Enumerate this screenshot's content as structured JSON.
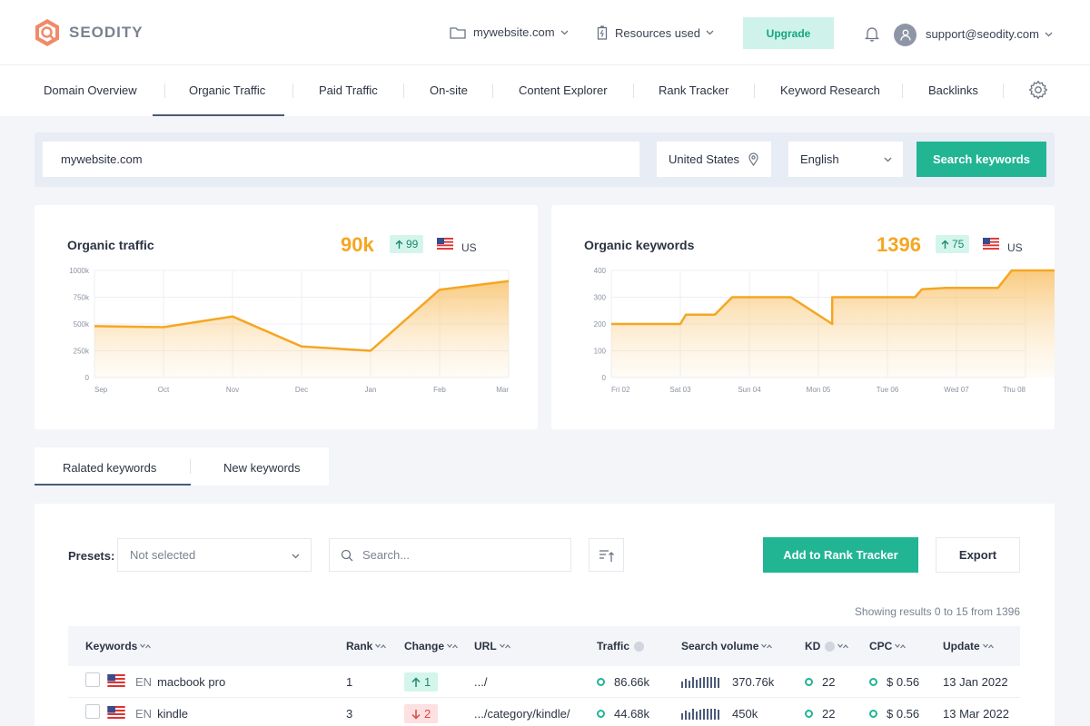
{
  "brand": {
    "name": "SEODITY",
    "accent": "#f5a623",
    "green": "#21b594"
  },
  "header": {
    "project": "mywebsite.com",
    "resources": "Resources used",
    "upgrade": "Upgrade",
    "user_email": "support@seodity.com"
  },
  "nav": {
    "tabs": [
      "Domain Overview",
      "Organic Traffic",
      "Paid Traffic",
      "On-site",
      "Content Explorer",
      "Rank Tracker",
      "Keyword Research",
      "Backlinks"
    ],
    "active": "Organic Traffic"
  },
  "search": {
    "domain": "mywebsite.com",
    "country": "United States",
    "language": "English",
    "button": "Search keywords"
  },
  "cards": {
    "traffic": {
      "title": "Organic traffic",
      "value": "90k",
      "change": "99",
      "country": "US"
    },
    "keywords": {
      "title": "Organic keywords",
      "value": "1396",
      "change": "75",
      "country": "US"
    }
  },
  "chart_data": [
    {
      "type": "area",
      "title": "Organic traffic",
      "categories": [
        "Sep",
        "Oct",
        "Nov",
        "Dec",
        "Jan",
        "Feb",
        "Mar"
      ],
      "y_ticks": [
        "1000k",
        "750k",
        "500k",
        "250k",
        "0"
      ],
      "ylim": [
        0,
        1000000
      ],
      "values": [
        480000,
        470000,
        570000,
        290000,
        250000,
        820000,
        900000
      ],
      "grid": true
    },
    {
      "type": "area",
      "title": "Organic keywords",
      "categories": [
        "Fri 02",
        "Sat 03",
        "Sun 04",
        "Mon 05",
        "Tue 06",
        "Wed 07",
        "Thu 08"
      ],
      "y_ticks": [
        "400",
        "300",
        "200",
        "100",
        "0"
      ],
      "ylim": [
        0,
        400
      ],
      "step_points": [
        [
          0,
          200
        ],
        [
          1,
          200
        ],
        [
          1.08,
          235
        ],
        [
          1.5,
          235
        ],
        [
          1.75,
          300
        ],
        [
          2.6,
          300
        ],
        [
          3.2,
          200
        ],
        [
          3.2,
          300
        ],
        [
          4.4,
          300
        ],
        [
          4.5,
          330
        ],
        [
          4.85,
          335
        ],
        [
          5.6,
          335
        ],
        [
          5.8,
          400
        ],
        [
          7,
          400
        ]
      ],
      "grid": true
    }
  ],
  "keyword_tabs": [
    "Ralated keywords",
    "New keywords"
  ],
  "toolbar": {
    "presets_label": "Presets:",
    "presets_value": "Not selected",
    "search_placeholder": "Search...",
    "add_button": "Add to Rank Tracker",
    "export_button": "Export",
    "results_text": "Showing results 0 to 15 from 1396"
  },
  "table": {
    "columns": [
      "Keywords",
      "Rank",
      "Change",
      "URL",
      "Traffic",
      "Search volume",
      "KD",
      "CPC",
      "Update"
    ],
    "rows": [
      {
        "lang": "EN",
        "keyword": "macbook pro",
        "rank": "1",
        "change": "1",
        "direction": "up",
        "url": ".../",
        "traffic": "86.66k",
        "volume": "370.76k",
        "kd": "22",
        "cpc": "$ 0.56",
        "update": "13 Jan 2022",
        "bars": [
          4,
          7,
          5,
          9,
          6,
          8,
          9,
          9,
          9,
          9,
          8
        ]
      },
      {
        "lang": "EN",
        "keyword": "kindle",
        "rank": "3",
        "change": "2",
        "direction": "down",
        "url": ".../category/kindle/",
        "traffic": "44.68k",
        "volume": "450k",
        "kd": "22",
        "cpc": "$ 0.56",
        "update": "13 Mar 2022",
        "bars": [
          4,
          7,
          5,
          9,
          6,
          8,
          9,
          9,
          9,
          9,
          8
        ]
      }
    ]
  }
}
